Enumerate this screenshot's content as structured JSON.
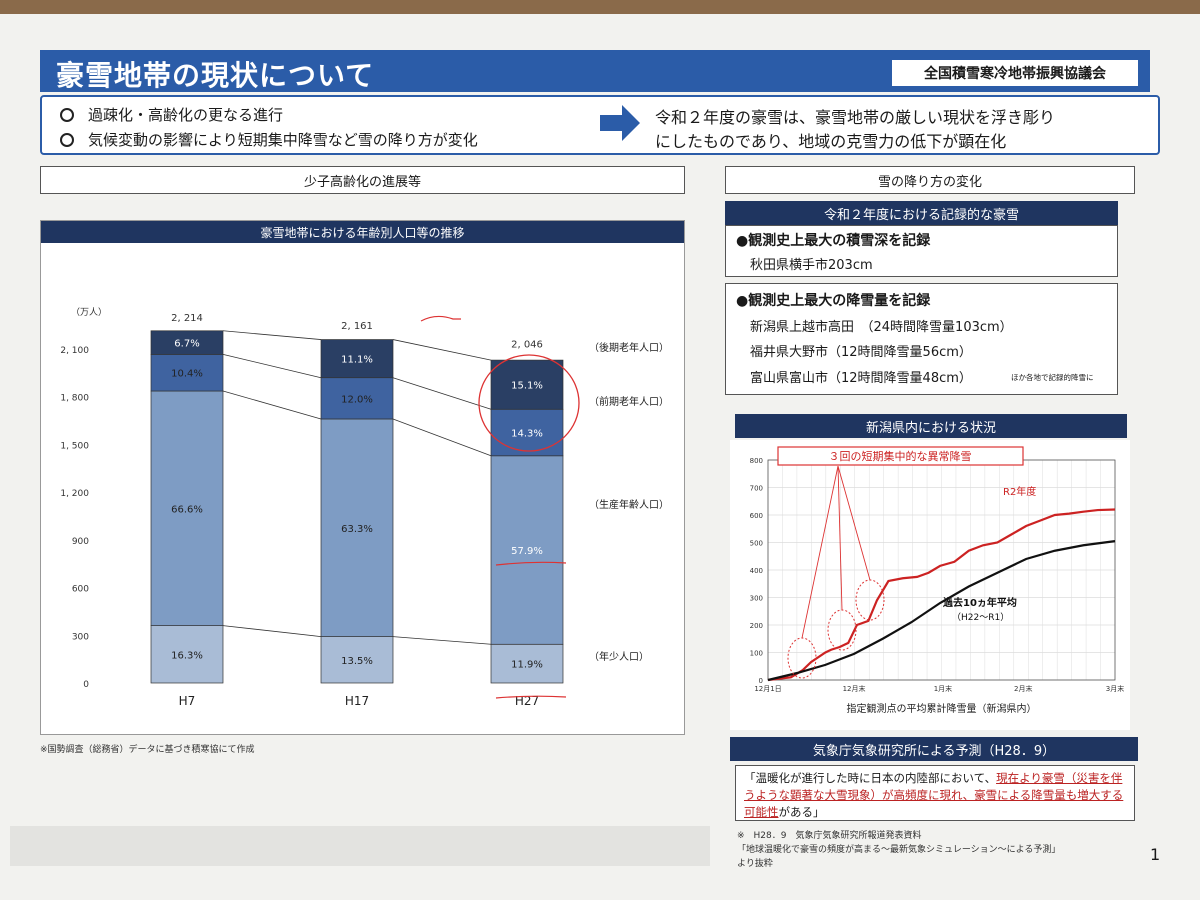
{
  "header": {
    "title": "豪雪地帯の現状について",
    "org": "全国積雪寒冷地帯振興協議会"
  },
  "summary": {
    "bullet1": "過疎化・高齢化の更なる進行",
    "bullet2": "気候変動の影響により短期集中降雪など雪の降り方が変化",
    "conclusion1": "令和２年度の豪雪は、豪雪地帯の厳しい現状を浮き彫り",
    "conclusion2": "にしたものであり、地域の克雪力の低下が顕在化"
  },
  "left": {
    "section_label": "少子高齢化の進展等",
    "panel_title": "豪雪地帯における年齢別人口等の推移",
    "footnote": "※国勢調査（総務省）データに基づき積寒協にて作成"
  },
  "right": {
    "section_label": "雪の降り方の変化",
    "record_title": "令和２年度における記録的な豪雪",
    "depth_heading": "●観測史上最大の積雪深を記録",
    "depth_item": "秋田県横手市203cm",
    "fall_heading": "●観測史上最大の降雪量を記録",
    "fall_items": [
      "新潟県上越市高田　（24時間降雪量103cm）",
      "福井県大野市（12時間降雪量56cm）",
      "富山県富山市（12時間降雪量48cm）"
    ],
    "fall_note": "ほか各地で記録的降雪に",
    "niigata_title": "新潟県内における状況",
    "forecast_title": "気象庁気象研究所による予測（H28．9）",
    "forecast_p1": "「温暖化が進行した時に日本の内陸部において、",
    "forecast_p2": "現在より豪雪（災害を伴うような顕著な大雪現象）が高頻度に現れ、豪雪による降雪量も増大する可能性",
    "forecast_p3": "がある」",
    "source1": "※　H28．9　気象庁気象研究所報道発表資料",
    "source2": "「地球温暖化で豪雪の頻度が高まる～最新気象シミュレーション～による予測」",
    "source3": "より抜粋"
  },
  "page_number": "1",
  "colors": {
    "header_blue": "#2b5ca8",
    "panel_navy": "#1f3560",
    "annotation_red": "#d33",
    "r2_line": "#cc2222"
  },
  "chart_data": [
    {
      "type": "bar",
      "stacked": true,
      "unit_label": "（万人）",
      "categories": [
        "H7",
        "H17",
        "H27"
      ],
      "totals": [
        "2, 214",
        "2, 161",
        "2, 046"
      ],
      "total_values": [
        2214,
        2161,
        2046
      ],
      "yticks": [
        "0",
        "300",
        "600",
        "900",
        "1, 200",
        "1, 500",
        "1, 800",
        "2, 100"
      ],
      "ylim": [
        0,
        2200
      ],
      "series": [
        {
          "name": "（年少人口）",
          "percents": [
            "16.3%",
            "13.5%",
            "11.9%"
          ],
          "shares": [
            16.3,
            13.5,
            11.9
          ]
        },
        {
          "name": "（生産年齢人口）",
          "percents": [
            "66.6%",
            "63.3%",
            "57.9%"
          ],
          "shares": [
            66.6,
            63.3,
            57.9
          ]
        },
        {
          "name": "（前期老年人口）",
          "percents": [
            "10.4%",
            "12.0%",
            "14.3%"
          ],
          "shares": [
            10.4,
            12.0,
            14.3
          ]
        },
        {
          "name": "（後期老年人口）",
          "percents": [
            "6.7%",
            "11.1%",
            "15.1%"
          ],
          "shares": [
            6.7,
            11.1,
            15.1
          ]
        }
      ]
    },
    {
      "type": "line",
      "xlabel": "指定観測点の平均累計降雪量（新潟県内）",
      "xticks": [
        "12月1日",
        "12月末",
        "1月末",
        "2月末",
        "3月末"
      ],
      "yticks": [
        "0",
        "100",
        "200",
        "300",
        "400",
        "500",
        "600",
        "700",
        "800"
      ],
      "ylim": [
        0,
        800
      ],
      "annotation": "３回の短期集中的な異常降雪",
      "series": [
        {
          "name": "R2年度",
          "x": [
            0,
            8,
            12,
            15,
            20,
            22,
            25,
            28,
            31,
            35,
            38,
            42,
            47,
            52,
            56,
            60,
            65,
            70,
            75,
            80,
            85,
            90,
            95,
            100,
            105,
            110,
            115,
            121
          ],
          "y": [
            0,
            10,
            35,
            65,
            100,
            110,
            120,
            135,
            200,
            215,
            290,
            360,
            370,
            375,
            390,
            415,
            430,
            470,
            490,
            500,
            530,
            560,
            580,
            600,
            605,
            612,
            618,
            620
          ]
        },
        {
          "name": "過去10ヵ年平均",
          "sub": "（H22～R1）",
          "x": [
            0,
            10,
            20,
            30,
            40,
            50,
            60,
            70,
            80,
            90,
            100,
            110,
            121
          ],
          "y": [
            0,
            25,
            55,
            95,
            150,
            210,
            280,
            340,
            390,
            440,
            470,
            490,
            505
          ]
        }
      ]
    }
  ]
}
